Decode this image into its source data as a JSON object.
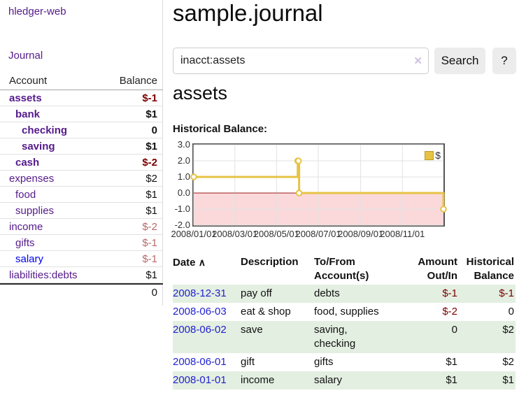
{
  "app": {
    "brand": "hledger-web",
    "nav": {
      "journal": "Journal"
    }
  },
  "sidebar": {
    "columns": {
      "account": "Account",
      "balance": "Balance"
    },
    "accounts": [
      {
        "name": "assets",
        "depth": 0,
        "bold": true,
        "balance": "$-1",
        "neg": "strong"
      },
      {
        "name": "bank",
        "depth": 1,
        "bold": true,
        "balance": "$1",
        "neg": "none"
      },
      {
        "name": "checking",
        "depth": 2,
        "bold": true,
        "balance": "0",
        "neg": "none"
      },
      {
        "name": "saving",
        "depth": 2,
        "bold": true,
        "balance": "$1",
        "neg": "none"
      },
      {
        "name": "cash",
        "depth": 1,
        "bold": true,
        "balance": "$-2",
        "neg": "strong"
      },
      {
        "name": "expenses",
        "depth": 0,
        "bold": false,
        "balance": "$2",
        "neg": "none"
      },
      {
        "name": "food",
        "depth": 1,
        "bold": false,
        "balance": "$1",
        "neg": "none"
      },
      {
        "name": "supplies",
        "depth": 1,
        "bold": false,
        "balance": "$1",
        "neg": "none"
      },
      {
        "name": "income",
        "depth": 0,
        "bold": false,
        "balance": "$-2",
        "neg": "soft"
      },
      {
        "name": "gifts",
        "depth": 1,
        "bold": false,
        "balance": "$-1",
        "neg": "soft"
      },
      {
        "name": "salary",
        "depth": 1,
        "bold": false,
        "balance": "$-1",
        "neg": "soft",
        "link": "blue"
      },
      {
        "name": "liabilities:debts",
        "depth": 0,
        "bold": false,
        "balance": "$1",
        "neg": "none"
      }
    ],
    "total": "0"
  },
  "main": {
    "title": "sample.journal",
    "account_title": "assets",
    "chart_label": "Historical Balance:"
  },
  "search": {
    "value": "inacct:assets",
    "clear_label": "✕",
    "search_button": "Search",
    "help_button": "?"
  },
  "chart_data": {
    "type": "line",
    "title": "Historical Balance",
    "x_type": "date",
    "xlim": [
      "2008-01-01",
      "2008-12-31"
    ],
    "ylim": [
      -2,
      3
    ],
    "y_ticks": [
      "3.0",
      "2.0",
      "1.0",
      "0.0",
      "-1.0",
      "-2.0"
    ],
    "x_ticks": [
      {
        "date": "2008-01-01",
        "label": "2008/01/01"
      },
      {
        "date": "2008-03-01",
        "label": "2008/03/01"
      },
      {
        "date": "2008-05-01",
        "label": "2008/05/01"
      },
      {
        "date": "2008-07-01",
        "label": "2008/07/01"
      },
      {
        "date": "2008-09-01",
        "label": "2008/09/01"
      },
      {
        "date": "2008-11-01",
        "label": "2008/11/01"
      }
    ],
    "series": [
      {
        "name": "$",
        "step": true,
        "points": [
          {
            "date": "2008-01-01",
            "value": 1
          },
          {
            "date": "2008-06-01",
            "value": 2
          },
          {
            "date": "2008-06-02",
            "value": 2
          },
          {
            "date": "2008-06-03",
            "value": 0
          },
          {
            "date": "2008-12-31",
            "value": -1
          }
        ]
      }
    ],
    "legend": {
      "label": "$",
      "position": "top-right"
    },
    "grid": true,
    "zero_line": true,
    "negative_region": true
  },
  "register": {
    "headers": {
      "date": "Date",
      "description": "Description",
      "tofrom": "To/From Account(s)",
      "amount": "Amount Out/In",
      "balance": "Historical Balance"
    },
    "sort_icon": "∧",
    "rows": [
      {
        "date": "2008-12-31",
        "description": "pay off",
        "accounts": "debts",
        "amount": "$-1",
        "amount_neg": true,
        "balance": "$-1",
        "balance_neg": true,
        "green": true
      },
      {
        "date": "2008-06-03",
        "description": "eat & shop",
        "accounts": "food, supplies",
        "amount": "$-2",
        "amount_neg": true,
        "balance": "0",
        "balance_neg": false,
        "green": false
      },
      {
        "date": "2008-06-02",
        "description": "save",
        "accounts": "saving, checking",
        "amount": "0",
        "amount_neg": false,
        "balance": "$2",
        "balance_neg": false,
        "green": true
      },
      {
        "date": "2008-06-01",
        "description": "gift",
        "accounts": "gifts",
        "amount": "$1",
        "amount_neg": false,
        "balance": "$2",
        "balance_neg": false,
        "green": false
      },
      {
        "date": "2008-01-01",
        "description": "income",
        "accounts": "salary",
        "amount": "$1",
        "amount_neg": false,
        "balance": "$1",
        "balance_neg": false,
        "green": true
      }
    ]
  },
  "colors": {
    "link_purple": "#551a8b",
    "link_blue": "#0000ee",
    "date_link_blue": "#1f1fd0",
    "negative_strong": "#7c0000",
    "negative_soft": "#b96a6a",
    "row_green": "#e3efe1",
    "chart_gold": "#e7c343",
    "chart_pink": "#fbd9da",
    "zero_line_red": "#9d1a1a",
    "button_bg": "#ececec",
    "grid_gray": "#e2e2e2"
  }
}
